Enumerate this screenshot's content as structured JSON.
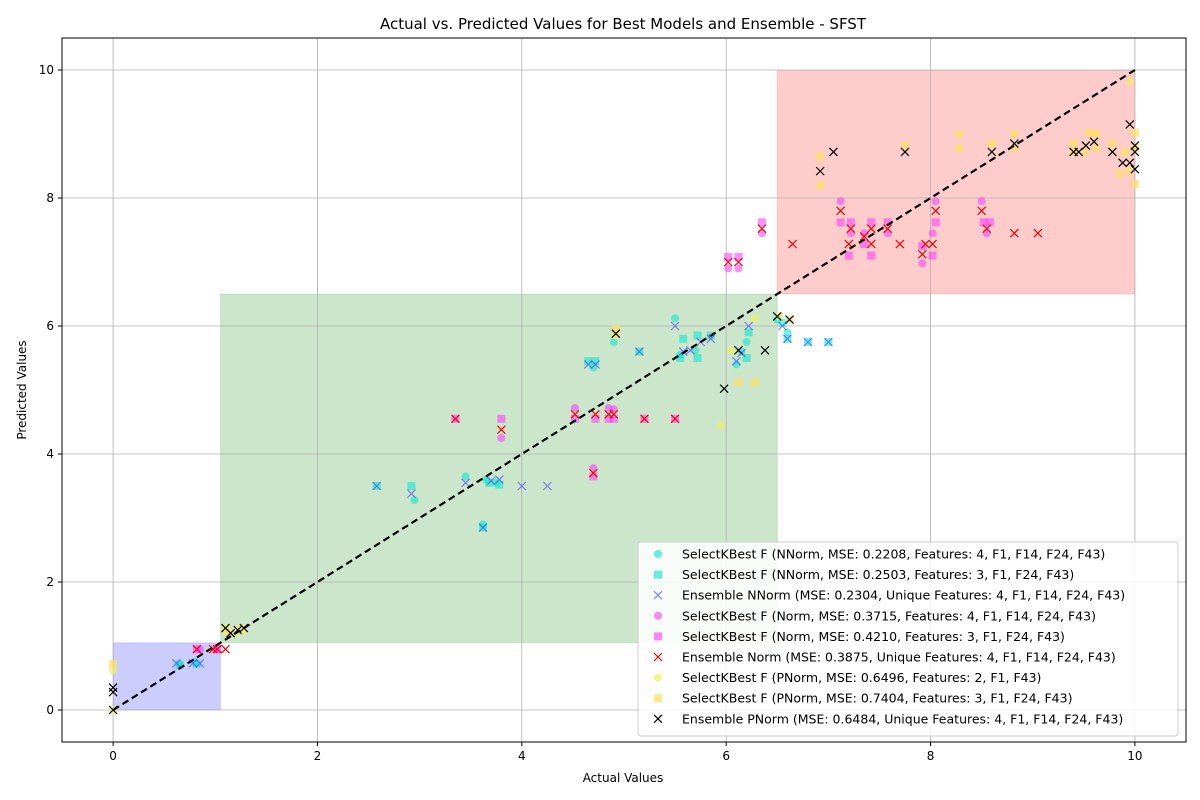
{
  "chart_data": {
    "type": "scatter",
    "title": "Actual vs. Predicted Values for Best Models and Ensemble - SFST",
    "xlabel": "Actual Values",
    "ylabel": "Predicted Values",
    "xlim": [
      -0.5,
      10.5
    ],
    "ylim": [
      -0.5,
      10.5
    ],
    "xticks": [
      0,
      2,
      4,
      6,
      8,
      10
    ],
    "yticks": [
      0,
      2,
      4,
      6,
      8,
      10
    ],
    "grid": true,
    "legend_position": "lower-right",
    "reference_line": {
      "style": "dashed",
      "color": "#000000",
      "from": [
        0,
        0
      ],
      "to": [
        10,
        10
      ]
    },
    "regions": [
      {
        "x": [
          0,
          1.05
        ],
        "y": [
          0,
          1.05
        ],
        "color": "#0000ff",
        "opacity": 0.2
      },
      {
        "x": [
          1.05,
          6.5
        ],
        "y": [
          1.05,
          6.5
        ],
        "color": "#008000",
        "opacity": 0.2
      },
      {
        "x": [
          6.5,
          10
        ],
        "y": [
          6.5,
          10
        ],
        "color": "#ff0000",
        "opacity": 0.2
      }
    ],
    "series": [
      {
        "name": "SelectKBest F (NNorm, MSE: 0.2208, Features: 4, F1, F14, F24, F43)",
        "marker": "circle",
        "color": "#00e5cc",
        "opacity": 0.55,
        "points": [
          [
            0.65,
            0.72
          ],
          [
            0.8,
            0.75
          ],
          [
            2.95,
            3.28
          ],
          [
            3.45,
            3.65
          ],
          [
            3.62,
            2.9
          ],
          [
            3.65,
            3.6
          ],
          [
            3.75,
            3.55
          ],
          [
            4.7,
            5.35
          ],
          [
            4.9,
            5.75
          ],
          [
            5.5,
            6.12
          ],
          [
            5.55,
            5.55
          ],
          [
            5.7,
            5.62
          ],
          [
            6.1,
            5.4
          ],
          [
            6.15,
            5.6
          ],
          [
            6.2,
            5.75
          ],
          [
            6.5,
            6.1
          ],
          [
            6.6,
            5.9
          ]
        ]
      },
      {
        "name": "SelectKBest F (NNorm, MSE: 0.2503, Features: 3, F1, F24, F43)",
        "marker": "square",
        "color": "#00e5cc",
        "opacity": 0.55,
        "points": [
          [
            0.65,
            0.7
          ],
          [
            0.82,
            0.72
          ],
          [
            2.58,
            3.5
          ],
          [
            2.92,
            3.5
          ],
          [
            3.62,
            2.85
          ],
          [
            3.68,
            3.55
          ],
          [
            3.78,
            3.52
          ],
          [
            4.65,
            5.45
          ],
          [
            4.72,
            5.45
          ],
          [
            5.15,
            5.6
          ],
          [
            5.55,
            5.5
          ],
          [
            5.58,
            5.8
          ],
          [
            5.72,
            5.5
          ],
          [
            5.72,
            5.85
          ],
          [
            5.85,
            5.85
          ],
          [
            6.2,
            5.5
          ],
          [
            6.22,
            5.9
          ],
          [
            6.55,
            6.05
          ],
          [
            6.6,
            5.8
          ],
          [
            6.8,
            5.75
          ],
          [
            7.0,
            5.75
          ]
        ]
      },
      {
        "name": "Ensemble NNorm (MSE: 0.2304, Unique Features: 4, F1, F14, F24, F43)",
        "marker": "x",
        "color": "#4444ff",
        "opacity": 0.65,
        "points": [
          [
            0.62,
            0.73
          ],
          [
            0.78,
            0.73
          ],
          [
            0.85,
            0.73
          ],
          [
            2.58,
            3.5
          ],
          [
            2.92,
            3.38
          ],
          [
            3.45,
            3.55
          ],
          [
            3.62,
            2.85
          ],
          [
            3.7,
            3.58
          ],
          [
            3.78,
            3.6
          ],
          [
            4.0,
            3.5
          ],
          [
            4.25,
            3.5
          ],
          [
            4.65,
            5.4
          ],
          [
            4.72,
            5.4
          ],
          [
            5.15,
            5.6
          ],
          [
            5.5,
            6.0
          ],
          [
            5.58,
            5.6
          ],
          [
            5.65,
            5.62
          ],
          [
            5.75,
            5.75
          ],
          [
            5.85,
            5.8
          ],
          [
            6.1,
            5.45
          ],
          [
            6.15,
            5.58
          ],
          [
            6.22,
            6.0
          ],
          [
            6.55,
            6.0
          ],
          [
            6.6,
            5.8
          ],
          [
            6.8,
            5.75
          ],
          [
            7.0,
            5.75
          ]
        ]
      },
      {
        "name": "SelectKBest F (Norm, MSE: 0.3715, Features: 4, F1, F14, F24, F43)",
        "marker": "circle",
        "color": "#ff33ff",
        "opacity": 0.55,
        "points": [
          [
            0.85,
            0.95
          ],
          [
            1.0,
            0.95
          ],
          [
            3.8,
            4.25
          ],
          [
            4.52,
            4.72
          ],
          [
            4.7,
            3.78
          ],
          [
            4.85,
            4.72
          ],
          [
            4.9,
            4.7
          ],
          [
            6.02,
            6.9
          ],
          [
            6.12,
            6.9
          ],
          [
            6.35,
            7.45
          ],
          [
            7.12,
            7.95
          ],
          [
            7.22,
            7.45
          ],
          [
            7.35,
            7.45
          ],
          [
            7.58,
            7.45
          ],
          [
            7.92,
            6.98
          ],
          [
            8.02,
            7.45
          ],
          [
            8.05,
            7.95
          ],
          [
            8.5,
            7.95
          ],
          [
            8.55,
            7.45
          ]
        ]
      },
      {
        "name": "SelectKBest F (Norm, MSE: 0.4210, Features: 3, F1, F24, F43)",
        "marker": "square",
        "color": "#ff33ff",
        "opacity": 0.55,
        "points": [
          [
            0.82,
            0.95
          ],
          [
            1.02,
            0.95
          ],
          [
            3.35,
            4.55
          ],
          [
            3.8,
            4.55
          ],
          [
            4.52,
            4.55
          ],
          [
            4.7,
            3.65
          ],
          [
            4.72,
            4.55
          ],
          [
            4.85,
            4.55
          ],
          [
            4.9,
            4.55
          ],
          [
            5.2,
            4.55
          ],
          [
            5.5,
            4.55
          ],
          [
            6.02,
            7.08
          ],
          [
            6.12,
            7.08
          ],
          [
            6.35,
            7.62
          ],
          [
            7.12,
            7.62
          ],
          [
            7.2,
            7.1
          ],
          [
            7.22,
            7.62
          ],
          [
            7.35,
            7.28
          ],
          [
            7.42,
            7.1
          ],
          [
            7.42,
            7.62
          ],
          [
            7.58,
            7.62
          ],
          [
            7.92,
            7.25
          ],
          [
            8.02,
            7.1
          ],
          [
            8.05,
            7.62
          ],
          [
            8.52,
            7.62
          ],
          [
            8.58,
            7.62
          ]
        ]
      },
      {
        "name": "Ensemble Norm (MSE: 0.3875, Unique Features: 4, F1, F14, F24, F43)",
        "marker": "x",
        "color": "#ff0000",
        "opacity": 1,
        "points": [
          [
            0.82,
            0.95
          ],
          [
            0.98,
            0.95
          ],
          [
            1.02,
            0.95
          ],
          [
            1.1,
            0.95
          ],
          [
            3.35,
            4.55
          ],
          [
            3.8,
            4.38
          ],
          [
            4.52,
            4.62
          ],
          [
            4.7,
            3.7
          ],
          [
            4.72,
            4.62
          ],
          [
            4.85,
            4.62
          ],
          [
            4.9,
            4.62
          ],
          [
            5.2,
            4.55
          ],
          [
            5.5,
            4.55
          ],
          [
            6.02,
            7.0
          ],
          [
            6.12,
            7.0
          ],
          [
            6.35,
            7.52
          ],
          [
            6.65,
            7.28
          ],
          [
            7.12,
            7.8
          ],
          [
            7.2,
            7.28
          ],
          [
            7.22,
            7.52
          ],
          [
            7.35,
            7.4
          ],
          [
            7.42,
            7.28
          ],
          [
            7.42,
            7.52
          ],
          [
            7.58,
            7.52
          ],
          [
            7.7,
            7.28
          ],
          [
            7.92,
            7.12
          ],
          [
            7.95,
            7.28
          ],
          [
            8.02,
            7.28
          ],
          [
            8.05,
            7.8
          ],
          [
            8.5,
            7.8
          ],
          [
            8.55,
            7.52
          ],
          [
            8.82,
            7.45
          ],
          [
            9.05,
            7.45
          ]
        ]
      },
      {
        "name": "SelectKBest F (PNorm, MSE: 0.6496, Features: 2, F1, F43)",
        "marker": "circle",
        "color": "#f0f060",
        "opacity": 0.7,
        "points": [
          [
            0.0,
            0.62
          ],
          [
            0.0,
            0.0
          ],
          [
            1.1,
            1.28
          ],
          [
            1.22,
            1.22
          ],
          [
            1.28,
            1.25
          ],
          [
            4.92,
            5.85
          ],
          [
            5.95,
            4.45
          ],
          [
            6.05,
            5.62
          ],
          [
            6.28,
            6.12
          ],
          [
            6.52,
            6.15
          ],
          [
            6.62,
            6.1
          ],
          [
            9.95,
            9.82
          ]
        ]
      },
      {
        "name": "SelectKBest F (PNorm, MSE: 0.7404, Features: 3, F1, F24, F43)",
        "marker": "square",
        "color": "#ffe066",
        "opacity": 0.75,
        "points": [
          [
            0.0,
            0.72
          ],
          [
            1.12,
            1.22
          ],
          [
            1.25,
            1.28
          ],
          [
            4.92,
            5.95
          ],
          [
            6.12,
            5.12
          ],
          [
            6.28,
            5.12
          ],
          [
            6.92,
            8.2
          ],
          [
            6.92,
            8.65
          ],
          [
            7.75,
            8.82
          ],
          [
            8.28,
            8.78
          ],
          [
            8.28,
            9.0
          ],
          [
            8.6,
            8.85
          ],
          [
            8.82,
            8.78
          ],
          [
            8.82,
            9.0
          ],
          [
            9.4,
            8.72
          ],
          [
            9.4,
            8.85
          ],
          [
            9.5,
            8.72
          ],
          [
            9.55,
            9.02
          ],
          [
            9.62,
            8.78
          ],
          [
            9.62,
            9.0
          ],
          [
            9.78,
            8.85
          ],
          [
            9.85,
            8.38
          ],
          [
            9.9,
            8.72
          ],
          [
            9.95,
            8.42
          ],
          [
            10.0,
            8.22
          ],
          [
            10.0,
            8.78
          ],
          [
            10.0,
            9.02
          ]
        ]
      },
      {
        "name": "Ensemble PNorm (MSE: 0.6484, Unique Features: 4, F1, F14, F24, F43)",
        "marker": "x",
        "color": "#000000",
        "opacity": 1,
        "points": [
          [
            0.0,
            0.35
          ],
          [
            0.0,
            0.28
          ],
          [
            0.0,
            0.0
          ],
          [
            1.1,
            1.28
          ],
          [
            1.15,
            1.2
          ],
          [
            1.22,
            1.25
          ],
          [
            1.28,
            1.28
          ],
          [
            4.92,
            5.88
          ],
          [
            5.98,
            5.02
          ],
          [
            6.12,
            5.62
          ],
          [
            6.38,
            5.62
          ],
          [
            6.5,
            6.15
          ],
          [
            6.62,
            6.1
          ],
          [
            6.92,
            8.42
          ],
          [
            7.05,
            8.72
          ],
          [
            7.75,
            8.72
          ],
          [
            8.6,
            8.72
          ],
          [
            8.82,
            8.85
          ],
          [
            9.4,
            8.72
          ],
          [
            9.45,
            8.72
          ],
          [
            9.52,
            8.82
          ],
          [
            9.6,
            8.88
          ],
          [
            9.78,
            8.72
          ],
          [
            9.88,
            8.55
          ],
          [
            9.95,
            8.55
          ],
          [
            9.95,
            9.15
          ],
          [
            10.0,
            8.45
          ],
          [
            10.0,
            8.72
          ],
          [
            10.0,
            8.82
          ]
        ]
      }
    ]
  }
}
